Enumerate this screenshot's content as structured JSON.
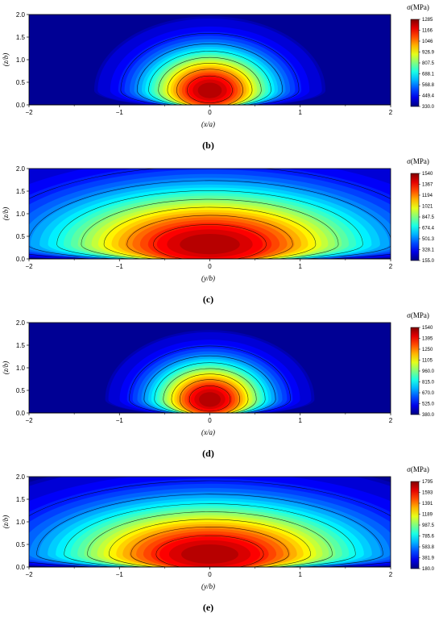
{
  "chart_data": [
    {
      "type": "heatmap",
      "panel_label": "(b)",
      "xlabel": "(x/a)",
      "ylabel": "(z/b)",
      "xlim": [
        -2,
        2
      ],
      "ylim": [
        0,
        2
      ],
      "x_ticks": [
        "−2",
        "−1",
        "0",
        "1",
        "2"
      ],
      "y_ticks": [
        "0.0",
        "0.5",
        "1.0",
        "1.5",
        "2.0"
      ],
      "colorbar_title": "σ(MPa)",
      "colorbar_ticks": [
        "1285",
        "1166",
        "1046",
        "926.9",
        "807.5",
        "688.1",
        "568.8",
        "449.4",
        "330.0"
      ],
      "vmin": 330.0,
      "vmax": 1285,
      "peak": {
        "x": 0,
        "y": 0.32
      },
      "spread_x": 0.42,
      "spread_y": 0.62,
      "contour_levels": 7
    },
    {
      "type": "heatmap",
      "panel_label": "(c)",
      "xlabel": "(y/b)",
      "ylabel": "(z/b)",
      "xlim": [
        -2,
        2
      ],
      "ylim": [
        0,
        2
      ],
      "x_ticks": [
        "−2",
        "−1",
        "0",
        "1",
        "2"
      ],
      "y_ticks": [
        "0.0",
        "0.5",
        "1.0",
        "1.5",
        "2.0"
      ],
      "colorbar_title": "σ(MPa)",
      "colorbar_ticks": [
        "1540",
        "1367",
        "1194",
        "1021",
        "847.5",
        "674.4",
        "501.3",
        "328.1",
        "155.0"
      ],
      "vmin": 155.0,
      "vmax": 1540,
      "peak": {
        "x": 0,
        "y": 0.32
      },
      "spread_x": 1.05,
      "spread_y": 0.85,
      "contour_levels": 7
    },
    {
      "type": "heatmap",
      "panel_label": "(d)",
      "xlabel": "(x/a)",
      "ylabel": "(z/b)",
      "xlim": [
        -2,
        2
      ],
      "ylim": [
        0,
        2
      ],
      "x_ticks": [
        "−2",
        "−1",
        "0",
        "1",
        "2"
      ],
      "y_ticks": [
        "0.0",
        "0.5",
        "1.0",
        "1.5",
        "2.0"
      ],
      "colorbar_title": "σ(MPa)",
      "colorbar_ticks": [
        "1540",
        "1395",
        "1250",
        "1105",
        "960.0",
        "815.0",
        "670.0",
        "525.0",
        "380.0"
      ],
      "vmin": 380.0,
      "vmax": 1540,
      "peak": {
        "x": 0,
        "y": 0.3
      },
      "spread_x": 0.38,
      "spread_y": 0.58,
      "contour_levels": 7
    },
    {
      "type": "heatmap",
      "panel_label": "(e)",
      "xlabel": "(y/b)",
      "ylabel": "(z/b)",
      "xlim": [
        -2,
        2
      ],
      "ylim": [
        0,
        2
      ],
      "x_ticks": [
        "−2",
        "−1",
        "0",
        "1",
        "2"
      ],
      "y_ticks": [
        "0.0",
        "0.5",
        "1.0",
        "1.5",
        "2.0"
      ],
      "colorbar_title": "σ(MPa)",
      "colorbar_ticks": [
        "1795",
        "1593",
        "1391",
        "1189",
        "987.5",
        "785.6",
        "583.8",
        "381.9",
        "180.0"
      ],
      "vmin": 180.0,
      "vmax": 1795,
      "peak": {
        "x": 0,
        "y": 0.28
      },
      "spread_x": 1.0,
      "spread_y": 0.8,
      "contour_levels": 7
    }
  ]
}
